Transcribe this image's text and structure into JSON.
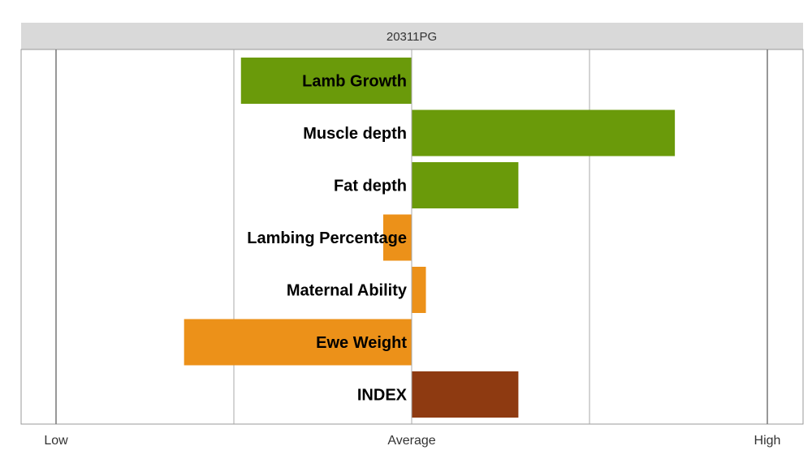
{
  "chart_data": {
    "type": "bar",
    "orientation": "horizontal",
    "title": "20311PG",
    "categories": [
      "Lamb Growth",
      "Muscle depth",
      "Fat depth",
      "Lambing Percentage",
      "Maternal Ability",
      "Ewe Weight",
      "INDEX"
    ],
    "values": [
      -0.48,
      0.74,
      0.3,
      -0.08,
      0.04,
      -0.64,
      0.3
    ],
    "bar_colors": [
      "#6a9a0a",
      "#6a9a0a",
      "#6a9a0a",
      "#ec9119",
      "#ec9119",
      "#ec9119",
      "#8e3a11"
    ],
    "xlim": [
      -1,
      1
    ],
    "xticks": [
      {
        "value": -1,
        "label": "Low"
      },
      {
        "value": 0,
        "label": "Average"
      },
      {
        "value": 1,
        "label": "High"
      }
    ],
    "gridlines": [
      -1,
      -0.5,
      0,
      0.5,
      1
    ],
    "legend": "none"
  },
  "colors": {
    "title_band": "#d9d9d9",
    "frame": "#999999",
    "gridline": "#aaaaaa"
  }
}
